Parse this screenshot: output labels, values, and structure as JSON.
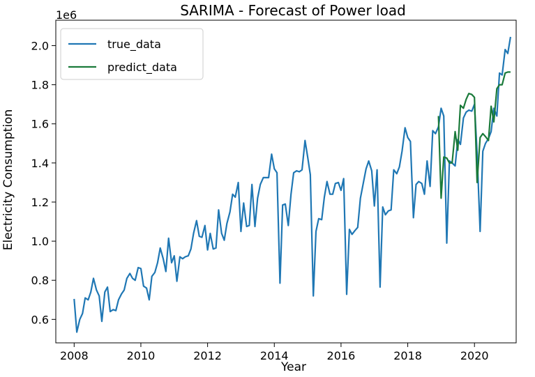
{
  "chart_data": {
    "type": "line",
    "title": "SARIMA - Forecast of Power load",
    "xlabel": "Year",
    "ylabel": "Electricity Consumption",
    "y_offset_label": "1e6",
    "xlim": [
      2007.45,
      2021.25
    ],
    "ylim": [
      480000,
      2130000
    ],
    "x_ticks": [
      2008,
      2010,
      2012,
      2014,
      2016,
      2018,
      2020
    ],
    "y_ticks": [
      600000,
      800000,
      1000000,
      1200000,
      1400000,
      1600000,
      1800000,
      2000000
    ],
    "y_tick_labels": [
      "0.6",
      "0.8",
      "1.0",
      "1.2",
      "1.4",
      "1.6",
      "1.8",
      "2.0"
    ],
    "legend_position": "top-left",
    "grid": false,
    "series": [
      {
        "name": "true_data",
        "color": "#1f77b4",
        "points": [
          [
            2008.0,
            705000
          ],
          [
            2008.08,
            535000
          ],
          [
            2008.17,
            600000
          ],
          [
            2008.25,
            630000
          ],
          [
            2008.33,
            710000
          ],
          [
            2008.42,
            700000
          ],
          [
            2008.5,
            740000
          ],
          [
            2008.58,
            810000
          ],
          [
            2008.67,
            750000
          ],
          [
            2008.75,
            720000
          ],
          [
            2008.83,
            590000
          ],
          [
            2008.92,
            740000
          ],
          [
            2009.0,
            765000
          ],
          [
            2009.08,
            640000
          ],
          [
            2009.17,
            650000
          ],
          [
            2009.25,
            645000
          ],
          [
            2009.33,
            700000
          ],
          [
            2009.42,
            730000
          ],
          [
            2009.5,
            750000
          ],
          [
            2009.58,
            810000
          ],
          [
            2009.67,
            835000
          ],
          [
            2009.75,
            810000
          ],
          [
            2009.83,
            800000
          ],
          [
            2009.92,
            865000
          ],
          [
            2010.0,
            860000
          ],
          [
            2010.08,
            770000
          ],
          [
            2010.17,
            760000
          ],
          [
            2010.25,
            700000
          ],
          [
            2010.33,
            820000
          ],
          [
            2010.42,
            840000
          ],
          [
            2010.5,
            890000
          ],
          [
            2010.58,
            965000
          ],
          [
            2010.67,
            910000
          ],
          [
            2010.75,
            845000
          ],
          [
            2010.83,
            1015000
          ],
          [
            2010.92,
            890000
          ],
          [
            2011.0,
            925000
          ],
          [
            2011.08,
            795000
          ],
          [
            2011.17,
            920000
          ],
          [
            2011.25,
            910000
          ],
          [
            2011.33,
            920000
          ],
          [
            2011.42,
            925000
          ],
          [
            2011.5,
            960000
          ],
          [
            2011.58,
            1040000
          ],
          [
            2011.67,
            1105000
          ],
          [
            2011.75,
            1025000
          ],
          [
            2011.83,
            1020000
          ],
          [
            2011.92,
            1080000
          ],
          [
            2012.0,
            955000
          ],
          [
            2012.08,
            1040000
          ],
          [
            2012.17,
            960000
          ],
          [
            2012.25,
            965000
          ],
          [
            2012.33,
            1160000
          ],
          [
            2012.42,
            1040000
          ],
          [
            2012.5,
            1005000
          ],
          [
            2012.58,
            1090000
          ],
          [
            2012.67,
            1150000
          ],
          [
            2012.75,
            1240000
          ],
          [
            2012.83,
            1225000
          ],
          [
            2012.92,
            1300000
          ],
          [
            2013.0,
            1050000
          ],
          [
            2013.08,
            1195000
          ],
          [
            2013.17,
            1075000
          ],
          [
            2013.25,
            1080000
          ],
          [
            2013.33,
            1290000
          ],
          [
            2013.42,
            1075000
          ],
          [
            2013.5,
            1220000
          ],
          [
            2013.58,
            1290000
          ],
          [
            2013.67,
            1325000
          ],
          [
            2013.75,
            1325000
          ],
          [
            2013.83,
            1325000
          ],
          [
            2013.92,
            1445000
          ],
          [
            2014.0,
            1370000
          ],
          [
            2014.08,
            1350000
          ],
          [
            2014.17,
            785000
          ],
          [
            2014.25,
            1185000
          ],
          [
            2014.33,
            1190000
          ],
          [
            2014.42,
            1080000
          ],
          [
            2014.5,
            1240000
          ],
          [
            2014.58,
            1350000
          ],
          [
            2014.67,
            1360000
          ],
          [
            2014.75,
            1355000
          ],
          [
            2014.83,
            1365000
          ],
          [
            2014.92,
            1515000
          ],
          [
            2015.0,
            1430000
          ],
          [
            2015.08,
            1340000
          ],
          [
            2015.17,
            720000
          ],
          [
            2015.25,
            1050000
          ],
          [
            2015.33,
            1115000
          ],
          [
            2015.42,
            1110000
          ],
          [
            2015.5,
            1225000
          ],
          [
            2015.58,
            1305000
          ],
          [
            2015.67,
            1240000
          ],
          [
            2015.75,
            1240000
          ],
          [
            2015.83,
            1295000
          ],
          [
            2015.92,
            1300000
          ],
          [
            2016.0,
            1260000
          ],
          [
            2016.08,
            1320000
          ],
          [
            2016.17,
            728000
          ],
          [
            2016.25,
            1060000
          ],
          [
            2016.33,
            1035000
          ],
          [
            2016.42,
            1055000
          ],
          [
            2016.5,
            1070000
          ],
          [
            2016.58,
            1220000
          ],
          [
            2016.67,
            1300000
          ],
          [
            2016.75,
            1370000
          ],
          [
            2016.83,
            1410000
          ],
          [
            2016.92,
            1360000
          ],
          [
            2017.0,
            1180000
          ],
          [
            2017.08,
            1365000
          ],
          [
            2017.17,
            765000
          ],
          [
            2017.25,
            1175000
          ],
          [
            2017.33,
            1135000
          ],
          [
            2017.42,
            1155000
          ],
          [
            2017.5,
            1160000
          ],
          [
            2017.58,
            1365000
          ],
          [
            2017.67,
            1345000
          ],
          [
            2017.75,
            1380000
          ],
          [
            2017.83,
            1460000
          ],
          [
            2017.92,
            1580000
          ],
          [
            2018.0,
            1530000
          ],
          [
            2018.08,
            1510000
          ],
          [
            2018.17,
            1120000
          ],
          [
            2018.25,
            1290000
          ],
          [
            2018.33,
            1305000
          ],
          [
            2018.42,
            1295000
          ],
          [
            2018.5,
            1240000
          ],
          [
            2018.58,
            1410000
          ],
          [
            2018.67,
            1280000
          ],
          [
            2018.75,
            1565000
          ],
          [
            2018.83,
            1550000
          ],
          [
            2018.92,
            1585000
          ],
          [
            2019.0,
            1680000
          ],
          [
            2019.08,
            1640000
          ],
          [
            2019.17,
            990000
          ],
          [
            2019.25,
            1410000
          ],
          [
            2019.33,
            1400000
          ],
          [
            2019.42,
            1385000
          ],
          [
            2019.5,
            1520000
          ],
          [
            2019.58,
            1495000
          ],
          [
            2019.67,
            1630000
          ],
          [
            2019.75,
            1660000
          ],
          [
            2019.83,
            1670000
          ],
          [
            2019.92,
            1665000
          ],
          [
            2020.0,
            1700000
          ],
          [
            2020.08,
            1450000
          ],
          [
            2020.17,
            1050000
          ],
          [
            2020.25,
            1460000
          ],
          [
            2020.33,
            1500000
          ],
          [
            2020.42,
            1525000
          ],
          [
            2020.5,
            1560000
          ],
          [
            2020.58,
            1680000
          ],
          [
            2020.67,
            1640000
          ],
          [
            2020.75,
            1860000
          ],
          [
            2020.83,
            1850000
          ],
          [
            2020.92,
            1980000
          ],
          [
            2021.0,
            1960000
          ],
          [
            2021.08,
            2045000
          ]
        ]
      },
      {
        "name": "predict_data",
        "color": "#1a7a3a",
        "points": [
          [
            2018.92,
            1640000
          ],
          [
            2019.0,
            1220000
          ],
          [
            2019.08,
            1430000
          ],
          [
            2019.17,
            1425000
          ],
          [
            2019.25,
            1400000
          ],
          [
            2019.33,
            1400000
          ],
          [
            2019.42,
            1560000
          ],
          [
            2019.5,
            1465000
          ],
          [
            2019.58,
            1695000
          ],
          [
            2019.67,
            1680000
          ],
          [
            2019.75,
            1725000
          ],
          [
            2019.83,
            1755000
          ],
          [
            2019.92,
            1750000
          ],
          [
            2020.0,
            1735000
          ],
          [
            2020.08,
            1300000
          ],
          [
            2020.17,
            1530000
          ],
          [
            2020.25,
            1550000
          ],
          [
            2020.33,
            1535000
          ],
          [
            2020.42,
            1515000
          ],
          [
            2020.5,
            1690000
          ],
          [
            2020.58,
            1610000
          ],
          [
            2020.67,
            1780000
          ],
          [
            2020.75,
            1800000
          ],
          [
            2020.83,
            1800000
          ],
          [
            2020.92,
            1860000
          ],
          [
            2021.0,
            1865000
          ],
          [
            2021.08,
            1865000
          ]
        ]
      }
    ]
  }
}
